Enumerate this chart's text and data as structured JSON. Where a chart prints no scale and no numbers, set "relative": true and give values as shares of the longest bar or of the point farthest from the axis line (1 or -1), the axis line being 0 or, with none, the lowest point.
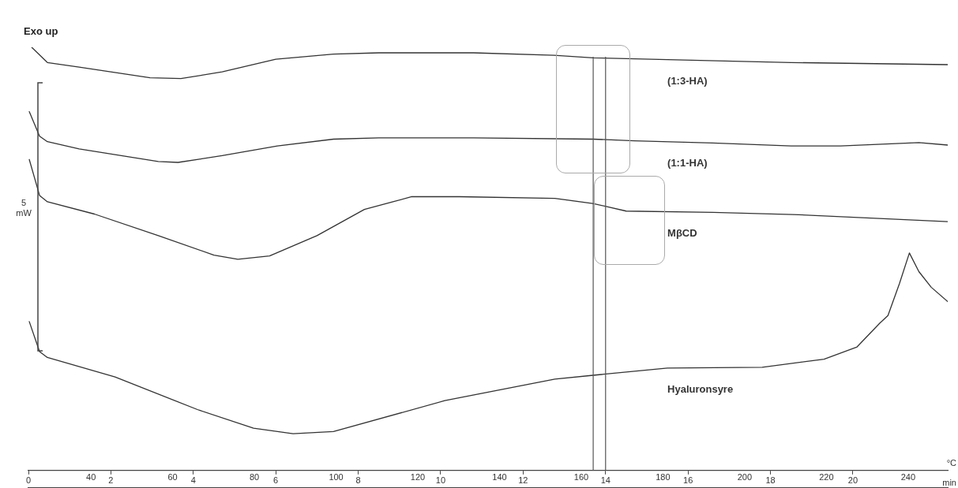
{
  "chart_data": {
    "type": "line",
    "relative": true,
    "ylabel": "Exo up",
    "xlabel": "min",
    "x2label": "°C",
    "xlim": [
      0,
      22.3
    ],
    "xticks": [
      0,
      2,
      4,
      6,
      8,
      10,
      12,
      14,
      16,
      18,
      20
    ],
    "x2lim": [
      24.7,
      249.7
    ],
    "x2ticks": [
      40,
      60,
      80,
      100,
      120,
      140,
      160,
      180,
      200,
      220,
      240
    ],
    "marker": "none",
    "line_style": "solid",
    "annotations": [
      "5 mW"
    ],
    "ref_lines": [
      {
        "axis": "x",
        "value": 13.7,
        "color": "#555555"
      },
      {
        "axis": "x",
        "value": 14.0,
        "color": "#555555"
      }
    ],
    "series": [
      {
        "name": "(1:3-HA)",
        "color": "#333333",
        "x": [
          0.08,
          0.46,
          1.23,
          2.95,
          3.7,
          4.7,
          6.0,
          7.4,
          8.5,
          10.8,
          12.75,
          13.7,
          15.1,
          18.5,
          22.3
        ],
        "values": [
          1.0,
          0.964,
          0.953,
          0.928,
          0.926,
          0.942,
          0.972,
          0.984,
          0.987,
          0.987,
          0.981,
          0.975,
          0.972,
          0.964,
          0.959
        ]
      },
      {
        "name": "(1:1-HA)",
        "color": "#333333",
        "x": [
          0.02,
          0.27,
          0.46,
          1.23,
          3.15,
          3.63,
          4.7,
          6.04,
          7.4,
          8.5,
          10.8,
          13.7,
          14.7,
          16.6,
          18.5,
          19.7,
          21.6,
          22.3
        ],
        "values": [
          0.848,
          0.79,
          0.777,
          0.76,
          0.73,
          0.728,
          0.744,
          0.767,
          0.783,
          0.786,
          0.786,
          0.783,
          0.779,
          0.774,
          0.767,
          0.767,
          0.775,
          0.769
        ]
      },
      {
        "name": "MβCD",
        "color": "#333333",
        "x": [
          0.02,
          0.27,
          0.46,
          1.6,
          3.15,
          4.5,
          5.08,
          5.85,
          7.0,
          8.15,
          9.3,
          10.46,
          12.77,
          13.69,
          14.5,
          16.6,
          18.54,
          22.3
        ],
        "values": [
          0.735,
          0.65,
          0.635,
          0.606,
          0.555,
          0.509,
          0.499,
          0.507,
          0.555,
          0.617,
          0.647,
          0.647,
          0.643,
          0.631,
          0.613,
          0.61,
          0.605,
          0.588
        ]
      },
      {
        "name": "Hyaluronsyre",
        "color": "#333333",
        "x": [
          0.02,
          0.27,
          0.46,
          2.1,
          4.1,
          5.46,
          6.42,
          7.4,
          10.1,
          12.77,
          13.7,
          15.5,
          17.8,
          19.3,
          20.1,
          20.65,
          20.85,
          21.13,
          21.37,
          21.6,
          21.9,
          22.3
        ],
        "values": [
          0.352,
          0.281,
          0.267,
          0.221,
          0.144,
          0.1,
          0.087,
          0.092,
          0.165,
          0.216,
          0.225,
          0.242,
          0.244,
          0.263,
          0.292,
          0.348,
          0.366,
          0.442,
          0.514,
          0.47,
          0.433,
          0.399
        ]
      }
    ]
  }
}
